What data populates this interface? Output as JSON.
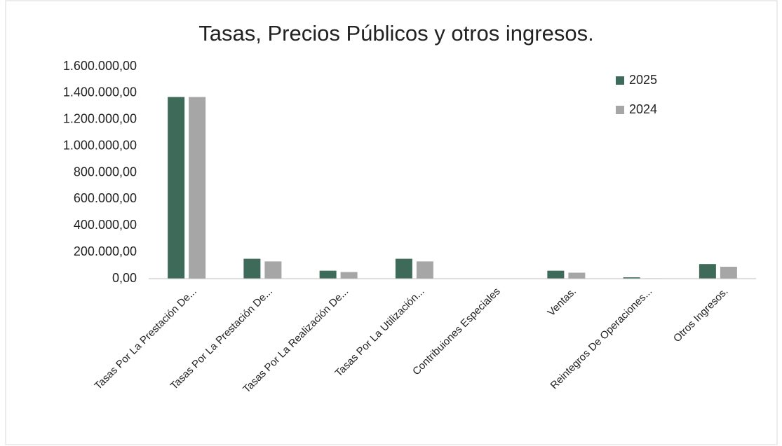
{
  "chart_data": {
    "type": "bar",
    "title": "Tasas, Precios Públicos y otros ingresos.",
    "categories": [
      "Tasas Por La Prestación De...",
      "Tasas Por La Prestación De...",
      "Tasas Por La Realización De...",
      "Tasas Por La Utilización...",
      "Contribuiones Especiales",
      "Ventas.",
      "Reintegros De Operaciones...",
      "Otros Ingresos."
    ],
    "series": [
      {
        "name": "2025",
        "color": "#3e6b59",
        "values": [
          1370000,
          150000,
          60000,
          150000,
          0,
          60000,
          10000,
          110000
        ]
      },
      {
        "name": "2024",
        "color": "#a6a6a6",
        "values": [
          1370000,
          130000,
          50000,
          130000,
          0,
          45000,
          3000,
          90000
        ]
      }
    ],
    "ylim": [
      0,
      1600000
    ],
    "yticks": [
      {
        "value": 0,
        "label": "0,00"
      },
      {
        "value": 200000,
        "label": "200.000,00"
      },
      {
        "value": 400000,
        "label": "400.000,00"
      },
      {
        "value": 600000,
        "label": "600.000,00"
      },
      {
        "value": 800000,
        "label": "800.000,00"
      },
      {
        "value": 1000000,
        "label": "1.000.000,00"
      },
      {
        "value": 1200000,
        "label": "1.200.000,00"
      },
      {
        "value": 1400000,
        "label": "1.400.000,00"
      },
      {
        "value": 1600000,
        "label": "1.600.000,00"
      }
    ],
    "grid": false,
    "legend": "top-right"
  }
}
